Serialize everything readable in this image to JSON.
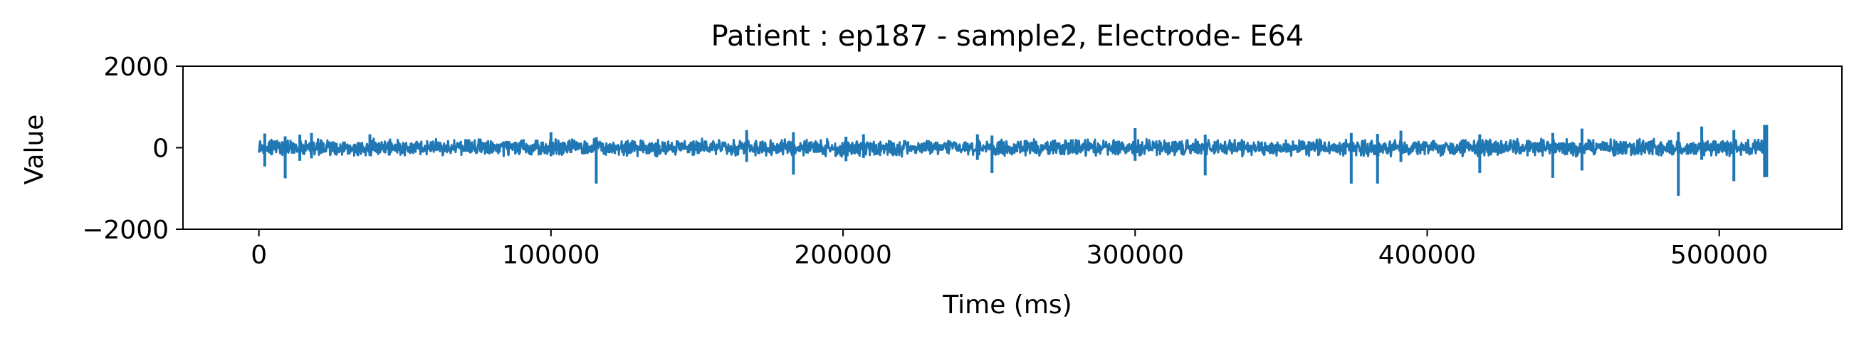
{
  "chart_data": {
    "type": "line",
    "title": "Patient : ep187 - sample2, Electrode- E64",
    "xlabel": "Time (ms)",
    "ylabel": "Value",
    "xlim": [
      -26000,
      542000
    ],
    "ylim": [
      -2000,
      2000
    ],
    "xticks": [
      0,
      100000,
      200000,
      300000,
      400000,
      500000
    ],
    "xtick_labels": [
      "0",
      "100000",
      "200000",
      "300000",
      "400000",
      "500000"
    ],
    "yticks": [
      -2000,
      0,
      2000
    ],
    "ytick_labels": [
      "−2000",
      "0",
      "2000"
    ],
    "series": [
      {
        "name": "E64",
        "color": "#1f77b4",
        "x_start": 0,
        "x_end": 516000,
        "baseline": 0,
        "typical_range": [
          -250,
          250
        ],
        "max_observed": 560,
        "min_observed": -1180,
        "spikes": [
          {
            "x": 2000,
            "min": -460,
            "max": 350
          },
          {
            "x": 9000,
            "min": -750,
            "max": 280
          },
          {
            "x": 14000,
            "min": -320,
            "max": 320
          },
          {
            "x": 18000,
            "min": -260,
            "max": 360
          },
          {
            "x": 38000,
            "min": -200,
            "max": 330
          },
          {
            "x": 100000,
            "min": -210,
            "max": 380
          },
          {
            "x": 115500,
            "min": -880,
            "max": 260
          },
          {
            "x": 167000,
            "min": -350,
            "max": 430
          },
          {
            "x": 183000,
            "min": -660,
            "max": 380
          },
          {
            "x": 201000,
            "min": -330,
            "max": 270
          },
          {
            "x": 207000,
            "min": -250,
            "max": 330
          },
          {
            "x": 246000,
            "min": -300,
            "max": 330
          },
          {
            "x": 251000,
            "min": -620,
            "max": 300
          },
          {
            "x": 300000,
            "min": -320,
            "max": 480
          },
          {
            "x": 324000,
            "min": -680,
            "max": 320
          },
          {
            "x": 374000,
            "min": -880,
            "max": 360
          },
          {
            "x": 383000,
            "min": -880,
            "max": 340
          },
          {
            "x": 391000,
            "min": -350,
            "max": 420
          },
          {
            "x": 418000,
            "min": -620,
            "max": 330
          },
          {
            "x": 443000,
            "min": -740,
            "max": 360
          },
          {
            "x": 453000,
            "min": -560,
            "max": 470
          },
          {
            "x": 486000,
            "min": -1180,
            "max": 390
          },
          {
            "x": 494000,
            "min": -300,
            "max": 520
          },
          {
            "x": 505000,
            "min": -820,
            "max": 430
          },
          {
            "x": 515500,
            "min": -720,
            "max": 560
          }
        ]
      }
    ]
  }
}
